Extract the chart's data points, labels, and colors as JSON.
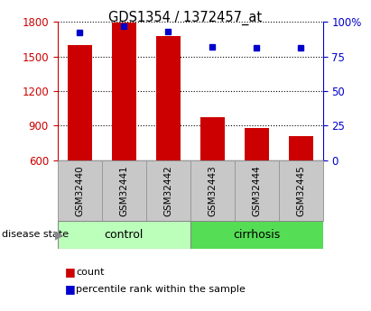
{
  "title": "GDS1354 / 1372457_at",
  "categories": [
    "GSM32440",
    "GSM32441",
    "GSM32442",
    "GSM32443",
    "GSM32444",
    "GSM32445"
  ],
  "bar_values": [
    1600,
    1795,
    1680,
    975,
    875,
    810
  ],
  "percentile_values": [
    92,
    97,
    93,
    82,
    81,
    81
  ],
  "y_min": 600,
  "y_max": 1800,
  "y_ticks": [
    600,
    900,
    1200,
    1500,
    1800
  ],
  "y_right_ticks": [
    0,
    25,
    50,
    75,
    100
  ],
  "bar_color": "#cc0000",
  "dot_color": "#0000cc",
  "control_color": "#bbffbb",
  "cirrhosis_color": "#55dd55",
  "xticklabel_bg": "#c8c8c8",
  "group_border_color": "#888888",
  "disease_label": "disease state",
  "legend_items": [
    "count",
    "percentile rank within the sample"
  ],
  "bar_width": 0.55
}
